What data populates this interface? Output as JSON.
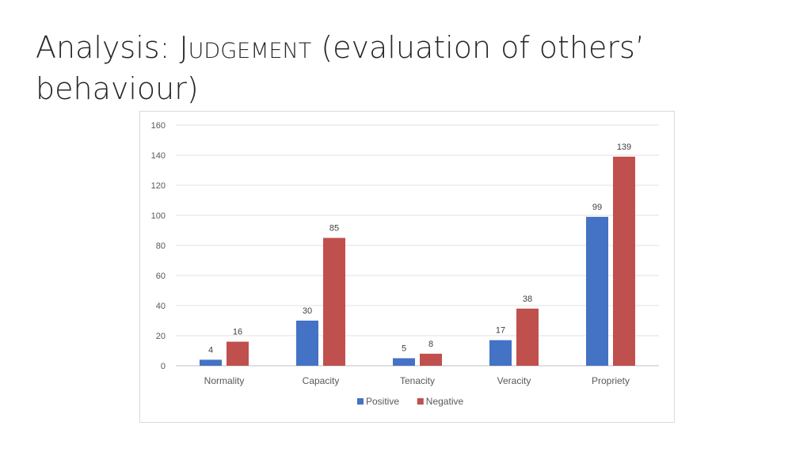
{
  "slide": {
    "title_prefix": "Analysis: ",
    "title_term": "Judgement",
    "title_suffix": " (evaluation of others’ behaviour)"
  },
  "chart_data": {
    "type": "bar",
    "categories": [
      "Normality",
      "Capacity",
      "Tenacity",
      "Veracity",
      "Propriety"
    ],
    "series": [
      {
        "name": "Positive",
        "values": [
          4,
          30,
          5,
          17,
          99
        ],
        "color": "#4472c4"
      },
      {
        "name": "Negative",
        "values": [
          16,
          85,
          8,
          38,
          139
        ],
        "color": "#c0504d"
      }
    ],
    "title": "",
    "xlabel": "",
    "ylabel": "",
    "ylim": [
      0,
      160
    ],
    "yticks": [
      0,
      20,
      40,
      60,
      80,
      100,
      120,
      140,
      160
    ],
    "grid": true,
    "legend": "bottom",
    "data_labels": true
  }
}
